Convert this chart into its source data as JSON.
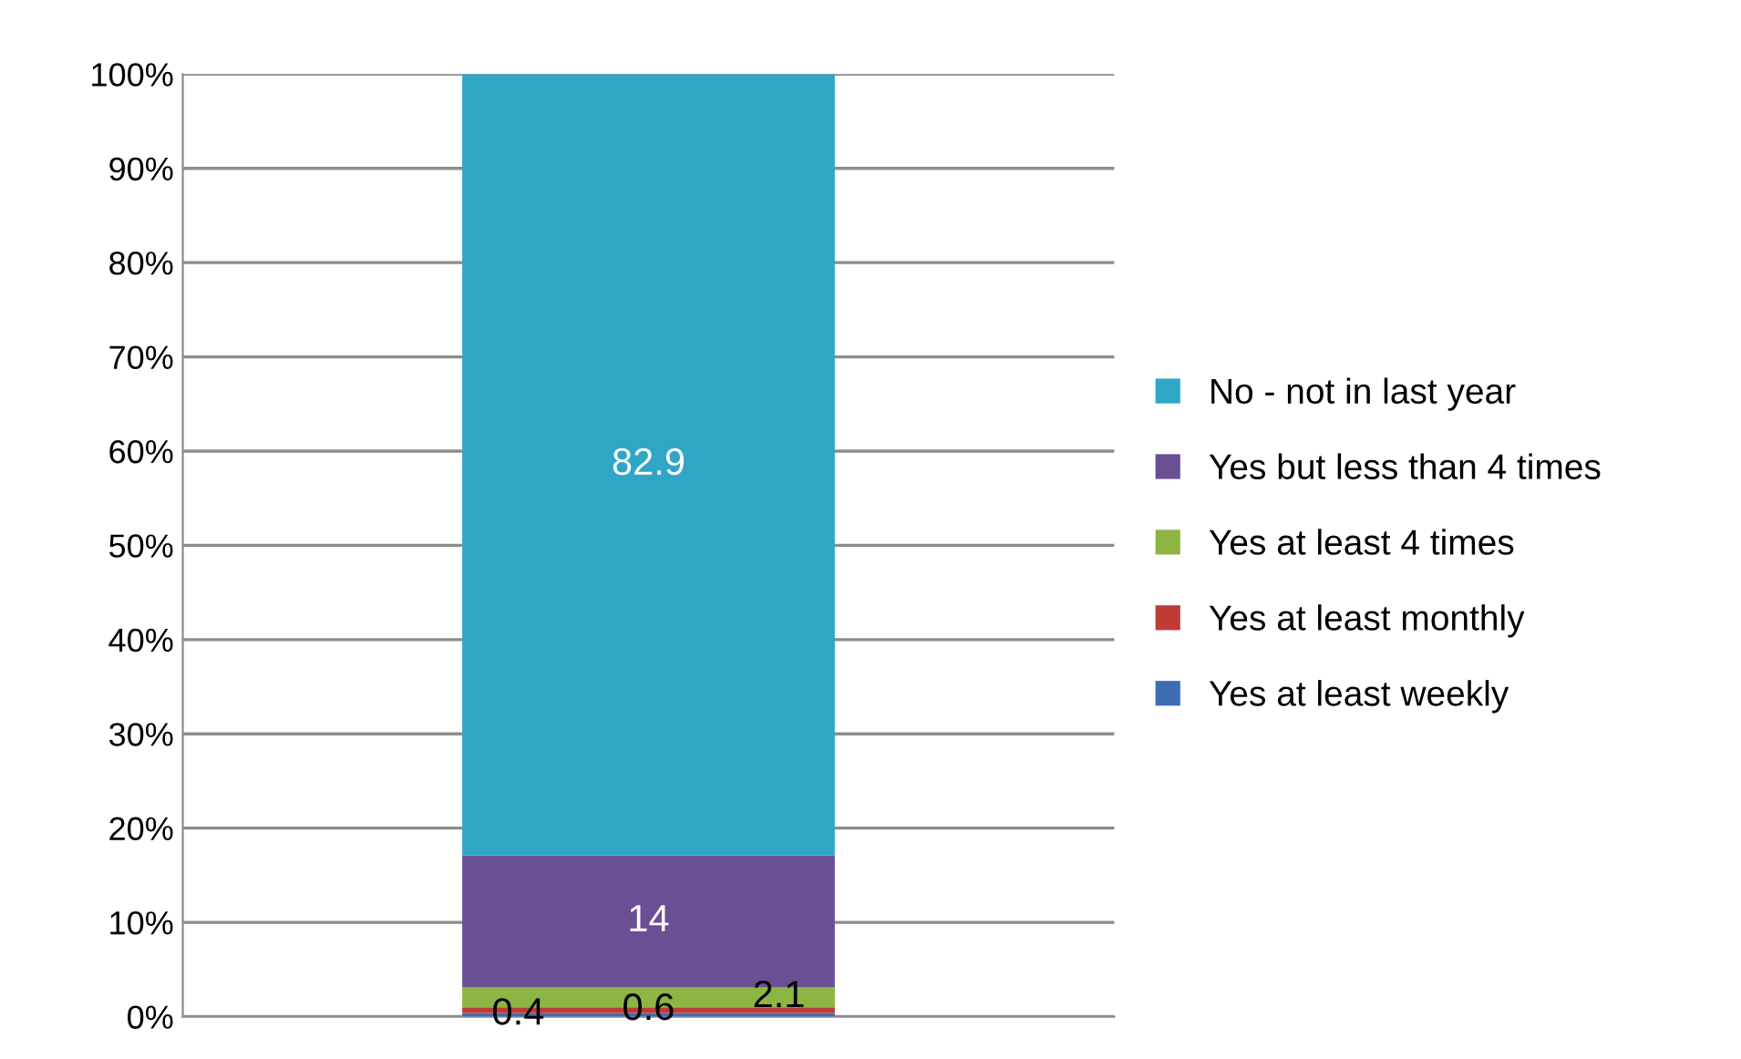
{
  "chart_data": {
    "type": "bar",
    "stacked": true,
    "categories": [
      null
    ],
    "series": [
      {
        "name": "Yes at least weekly",
        "color": "#3d6db3",
        "values": [
          0.4
        ]
      },
      {
        "name": "Yes at least monthly",
        "color": "#bf3b36",
        "values": [
          0.6
        ]
      },
      {
        "name": "Yes at least 4 times",
        "color": "#8db543",
        "values": [
          2.1
        ]
      },
      {
        "name": "Yes but less than 4 times",
        "color": "#6a4f95",
        "values": [
          14
        ]
      },
      {
        "name": "No - not in last year",
        "color": "#2fa6c6",
        "values": [
          82.9
        ]
      }
    ],
    "data_labels": true,
    "ylim": [
      0,
      100
    ],
    "yticks": [
      {
        "value": 0,
        "label": "0%"
      },
      {
        "value": 10,
        "label": "10%"
      },
      {
        "value": 20,
        "label": "20%"
      },
      {
        "value": 30,
        "label": "30%"
      },
      {
        "value": 40,
        "label": "40%"
      },
      {
        "value": 50,
        "label": "50%"
      },
      {
        "value": 60,
        "label": "60%"
      },
      {
        "value": 70,
        "label": "70%"
      },
      {
        "value": 80,
        "label": "80%"
      },
      {
        "value": 90,
        "label": "90%"
      },
      {
        "value": 100,
        "label": "100%"
      }
    ],
    "grid": "y",
    "legend": "right"
  }
}
